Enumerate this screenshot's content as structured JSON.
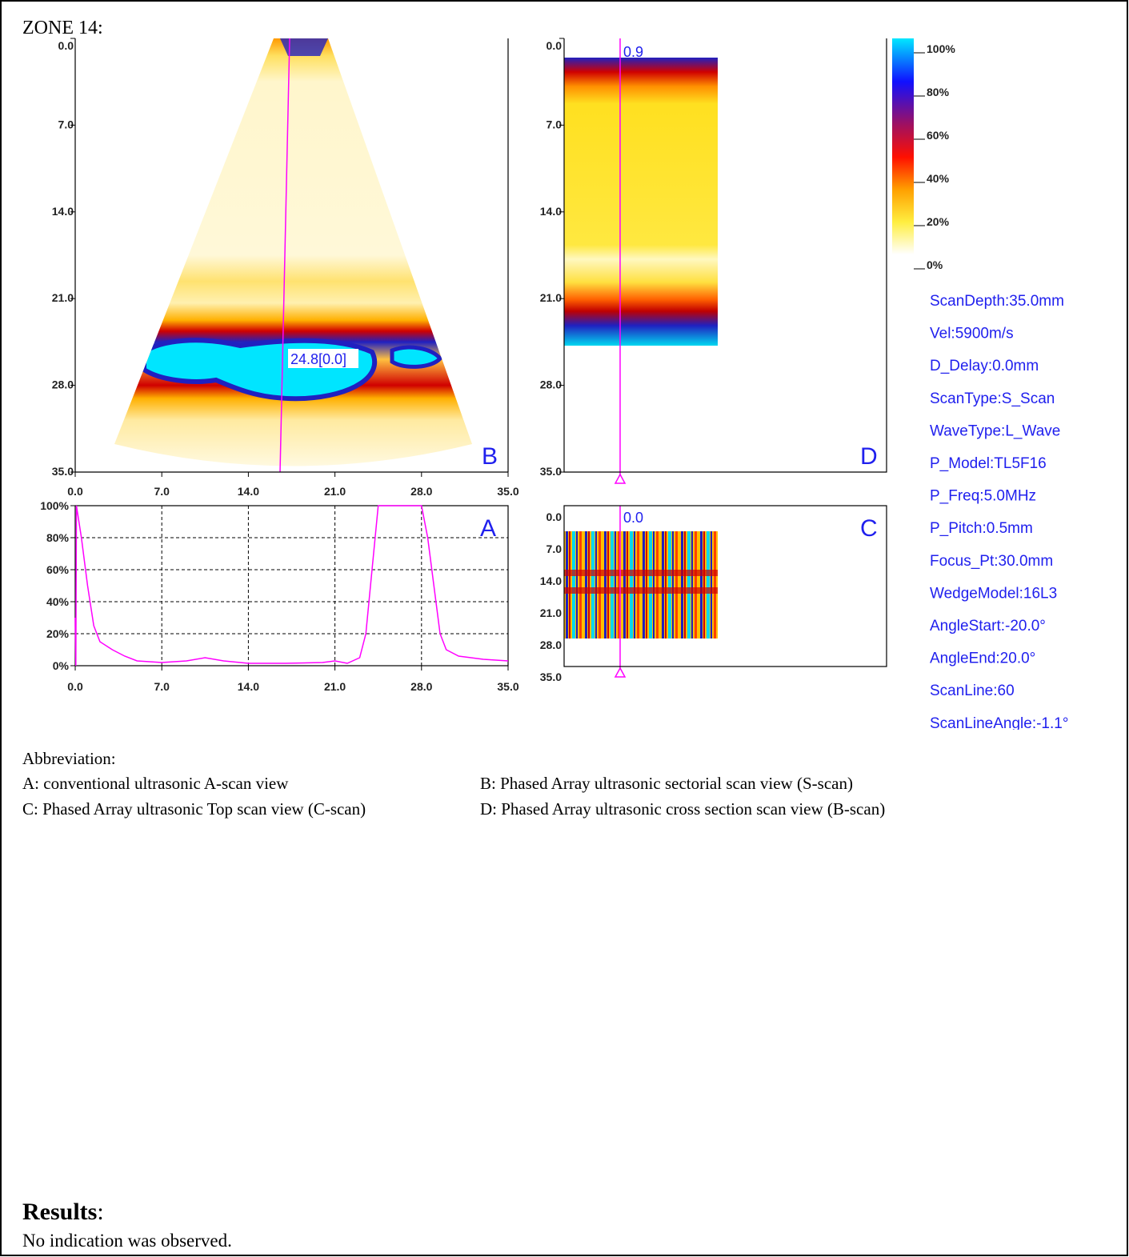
{
  "header": {
    "title": "ZONE 14:"
  },
  "s_scan": {
    "label": "B",
    "yticks": [
      "0.0",
      "7.0",
      "14.0",
      "21.0",
      "28.0",
      "35.0"
    ],
    "xticks": [
      "0.0",
      "7.0",
      "14.0",
      "21.0",
      "28.0",
      "35.0"
    ],
    "cursor_label": "24.8[0.0]"
  },
  "a_scan": {
    "label": "A",
    "color": "#ff00ff",
    "grid": true,
    "xlim": [
      0,
      35
    ],
    "ylim": [
      0,
      100
    ],
    "xticks": [
      {
        "value": 0,
        "label": "0.0"
      },
      {
        "value": 7,
        "label": "7.0"
      },
      {
        "value": 14,
        "label": "14.0"
      },
      {
        "value": 21,
        "label": "21.0"
      },
      {
        "value": 28,
        "label": "28.0"
      },
      {
        "value": 35,
        "label": "35.0"
      }
    ],
    "yticks": [
      {
        "value": 0,
        "label": "0%"
      },
      {
        "value": 20,
        "label": "20%"
      },
      {
        "value": 40,
        "label": "40%"
      },
      {
        "value": 60,
        "label": "60%"
      },
      {
        "value": 80,
        "label": "80%"
      },
      {
        "value": 100,
        "label": "100%"
      }
    ],
    "x": [
      0,
      0.05,
      0.1,
      0.5,
      1,
      1.5,
      2,
      3,
      4,
      5,
      7,
      9,
      10.5,
      12,
      14,
      17,
      20,
      21,
      22,
      23,
      23.5,
      24,
      24.5,
      28,
      28.5,
      29,
      29.5,
      30,
      31,
      33,
      35
    ],
    "values": [
      30,
      0,
      100,
      80,
      50,
      25,
      15,
      10,
      6,
      3,
      2,
      3,
      5,
      3,
      1.5,
      1.5,
      2,
      3,
      1.5,
      5,
      20,
      60,
      100,
      100,
      80,
      50,
      20,
      10,
      6,
      4,
      3
    ]
  },
  "b_scan": {
    "label": "D",
    "yticks": [
      "0.0",
      "7.0",
      "14.0",
      "21.0",
      "28.0",
      "35.0"
    ],
    "cursor_label": "0.9"
  },
  "c_scan": {
    "label": "C",
    "yticks": [
      "0.0",
      "7.0",
      "14.0",
      "21.0",
      "28.0",
      "35.0"
    ],
    "cursor_label": "0.0"
  },
  "color_scale": {
    "ticks": [
      "100%",
      "80%",
      "60%",
      "40%",
      "20%",
      "0%"
    ]
  },
  "parameters": [
    "ScanDepth:35.0mm",
    "Vel:5900m/s",
    "D_Delay:0.0mm",
    "ScanType:S_Scan",
    "WaveType:L_Wave",
    "P_Model:TL5F16",
    "P_Freq:5.0MHz",
    "P_Pitch:0.5mm",
    "Focus_Pt:30.0mm",
    "WedgeModel:16L3",
    "AngleStart:-20.0°",
    "AngleEnd:20.0°",
    "ScanLine:60",
    "ScanLineAngle:-1.1°"
  ],
  "abbreviation": {
    "title": "Abbreviation:",
    "items": [
      "A: conventional ultrasonic A-scan view",
      "B: Phased Array ultrasonic sectorial scan view (S-scan)",
      "C: Phased Array ultrasonic Top scan view (C-scan)",
      "D: Phased Array ultrasonic cross section scan view (B-scan)"
    ]
  },
  "results": {
    "heading": "Results",
    "punctuation": ":",
    "text": "No indication was observed."
  }
}
